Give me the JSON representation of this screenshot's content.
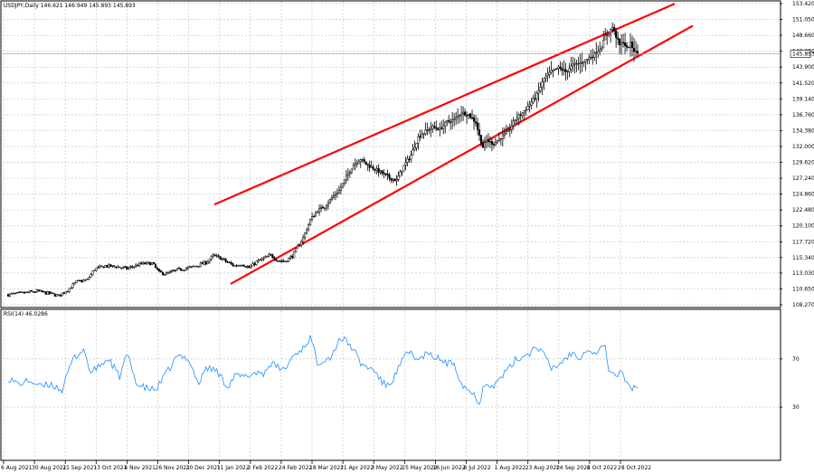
{
  "chart_data": [
    {
      "type": "candlestick",
      "title": "USDJPY,Daily  146.621 146.949 145.893 145.893",
      "current_price_label": "145.893",
      "ylim": [
        108.27,
        153.42
      ],
      "y_ticks": [
        "153.420",
        "151.050",
        "148.660",
        "146.280",
        "143.900",
        "141.520",
        "139.140",
        "136.760",
        "134.380",
        "132.000",
        "129.620",
        "127.240",
        "124.860",
        "122.480",
        "120.100",
        "117.720",
        "115.340",
        "113.030",
        "110.650",
        "108.270"
      ],
      "x_ticks": [
        "6 Aug 2021",
        "30 Aug 2021",
        "21 Sep 2021",
        "13 Oct 2021",
        "4 Nov 2021",
        "26 Nov 2021",
        "20 Dec 2021",
        "11 Jan 2022",
        "2 Feb 2022",
        "24 Feb 2022",
        "18 Mar 2022",
        "11 Apr 2022",
        "3 May 2022",
        "25 May 2022",
        "16 Jun 2022",
        "8 Jul 2022",
        "1 Aug 2022",
        "23 Aug 2022",
        "14 Sep 2022",
        "6 Oct 2022",
        "28 Oct 2022"
      ],
      "anchor_closes": [
        [
          0,
          109.8
        ],
        [
          8,
          110.0
        ],
        [
          16,
          110.3
        ],
        [
          24,
          109.9
        ],
        [
          28,
          109.6
        ],
        [
          33,
          110.5
        ],
        [
          38,
          111.7
        ],
        [
          44,
          112.0
        ],
        [
          48,
          113.6
        ],
        [
          54,
          114.1
        ],
        [
          60,
          114.0
        ],
        [
          66,
          113.7
        ],
        [
          74,
          114.4
        ],
        [
          80,
          114.5
        ],
        [
          84,
          113.1
        ],
        [
          88,
          112.9
        ],
        [
          94,
          113.5
        ],
        [
          102,
          113.9
        ],
        [
          110,
          114.6
        ],
        [
          114,
          115.6
        ],
        [
          118,
          115.3
        ],
        [
          122,
          114.6
        ],
        [
          126,
          114.1
        ],
        [
          130,
          114.4
        ],
        [
          134,
          113.8
        ],
        [
          138,
          114.7
        ],
        [
          142,
          115.2
        ],
        [
          146,
          115.7
        ],
        [
          150,
          114.9
        ],
        [
          154,
          114.8
        ],
        [
          158,
          115.6
        ],
        [
          164,
          118.3
        ],
        [
          168,
          121.0
        ],
        [
          172,
          122.4
        ],
        [
          176,
          123.0
        ],
        [
          180,
          124.3
        ],
        [
          184,
          125.4
        ],
        [
          188,
          127.4
        ],
        [
          192,
          129.3
        ],
        [
          196,
          130.1
        ],
        [
          200,
          129.2
        ],
        [
          204,
          128.6
        ],
        [
          208,
          128.0
        ],
        [
          212,
          127.3
        ],
        [
          216,
          126.9
        ],
        [
          220,
          129.1
        ],
        [
          224,
          130.7
        ],
        [
          228,
          133.4
        ],
        [
          232,
          134.3
        ],
        [
          236,
          134.9
        ],
        [
          240,
          134.6
        ],
        [
          244,
          135.7
        ],
        [
          248,
          136.0
        ],
        [
          252,
          137.1
        ],
        [
          256,
          136.8
        ],
        [
          260,
          135.6
        ],
        [
          262,
          133.6
        ],
        [
          264,
          131.9
        ],
        [
          266,
          132.9
        ],
        [
          270,
          132.4
        ],
        [
          274,
          133.4
        ],
        [
          278,
          134.2
        ],
        [
          282,
          136.1
        ],
        [
          286,
          137.0
        ],
        [
          290,
          138.3
        ],
        [
          294,
          139.7
        ],
        [
          298,
          142.2
        ],
        [
          302,
          143.2
        ],
        [
          306,
          143.8
        ],
        [
          310,
          143.2
        ],
        [
          314,
          144.2
        ],
        [
          318,
          144.5
        ],
        [
          322,
          145.1
        ],
        [
          326,
          145.8
        ],
        [
          330,
          147.0
        ],
        [
          332,
          148.5
        ],
        [
          334,
          149.1
        ],
        [
          336,
          149.9
        ],
        [
          338,
          148.5
        ],
        [
          340,
          147.2
        ],
        [
          342,
          147.7
        ],
        [
          344,
          146.7
        ],
        [
          346,
          147.4
        ],
        [
          348,
          146.4
        ],
        [
          350,
          145.893
        ]
      ],
      "drawn_lines": [
        {
          "label": "channel upper line",
          "color": "#ff0000",
          "from": [
            109,
            123.3
          ],
          "to": [
            354,
            153.4
          ]
        },
        {
          "label": "channel lower line",
          "color": "#ff0000",
          "from": [
            118,
            111.4
          ],
          "to": [
            364,
            150.1
          ]
        }
      ]
    },
    {
      "type": "line",
      "title": "RSI(14) 46.0286",
      "ylim": [
        0,
        100
      ],
      "y_ticks": [
        "70",
        "30"
      ],
      "series": [
        {
          "name": "RSI(14)",
          "color": "#1e90ff",
          "anchors": [
            [
              0,
              54
            ],
            [
              6,
              49
            ],
            [
              12,
              52
            ],
            [
              18,
              47
            ],
            [
              24,
              49
            ],
            [
              30,
              44
            ],
            [
              36,
              70
            ],
            [
              42,
              78
            ],
            [
              46,
              58
            ],
            [
              52,
              66
            ],
            [
              56,
              70
            ],
            [
              62,
              55
            ],
            [
              66,
              74
            ],
            [
              72,
              48
            ],
            [
              76,
              46
            ],
            [
              82,
              44
            ],
            [
              88,
              58
            ],
            [
              94,
              72
            ],
            [
              100,
              71
            ],
            [
              106,
              49
            ],
            [
              110,
              63
            ],
            [
              116,
              60
            ],
            [
              122,
              47
            ],
            [
              126,
              56
            ],
            [
              132,
              55
            ],
            [
              138,
              59
            ],
            [
              142,
              58
            ],
            [
              146,
              66
            ],
            [
              150,
              63
            ],
            [
              154,
              61
            ],
            [
              158,
              72
            ],
            [
              164,
              79
            ],
            [
              168,
              88
            ],
            [
              172,
              67
            ],
            [
              176,
              70
            ],
            [
              180,
              72
            ],
            [
              184,
              87
            ],
            [
              188,
              85
            ],
            [
              192,
              78
            ],
            [
              196,
              66
            ],
            [
              200,
              63
            ],
            [
              204,
              60
            ],
            [
              208,
              50
            ],
            [
              212,
              48
            ],
            [
              216,
              59
            ],
            [
              220,
              71
            ],
            [
              224,
              76
            ],
            [
              228,
              68
            ],
            [
              232,
              74
            ],
            [
              236,
              72
            ],
            [
              240,
              70
            ],
            [
              244,
              66
            ],
            [
              248,
              67
            ],
            [
              252,
              50
            ],
            [
              256,
              44
            ],
            [
              260,
              39
            ],
            [
              262,
              33
            ],
            [
              264,
              46
            ],
            [
              266,
              51
            ],
            [
              270,
              47
            ],
            [
              274,
              55
            ],
            [
              278,
              61
            ],
            [
              282,
              69
            ],
            [
              286,
              72
            ],
            [
              290,
              75
            ],
            [
              294,
              81
            ],
            [
              298,
              73
            ],
            [
              302,
              62
            ],
            [
              306,
              65
            ],
            [
              310,
              71
            ],
            [
              314,
              75
            ],
            [
              318,
              72
            ],
            [
              322,
              79
            ],
            [
              326,
              74
            ],
            [
              330,
              80
            ],
            [
              332,
              79
            ],
            [
              334,
              62
            ],
            [
              336,
              58
            ],
            [
              338,
              55
            ],
            [
              340,
              60
            ],
            [
              342,
              55
            ],
            [
              344,
              52
            ],
            [
              346,
              46
            ],
            [
              348,
              46
            ],
            [
              350,
              46.0286
            ]
          ]
        }
      ]
    }
  ]
}
